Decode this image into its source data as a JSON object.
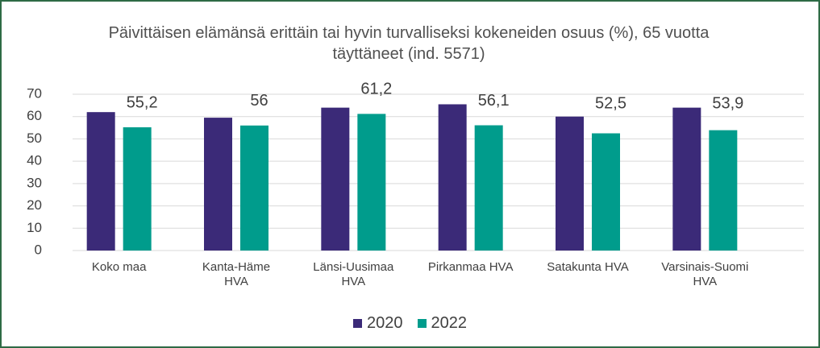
{
  "chart_data": {
    "type": "bar",
    "title": "Päivittäisen elämänsä erittäin tai hyvin turvalliseksi kokeneiden osuus (%), 65 vuotta täyttäneet (ind. 5571)",
    "categories": [
      "Koko maa",
      "Kanta-Häme HVA",
      "Länsi-Uusimaa HVA",
      "Pirkanmaa HVA",
      "Satakunta HVA",
      "Varsinais-Suomi HVA"
    ],
    "series": [
      {
        "name": "2020",
        "color": "#3b2a78",
        "values": [
          62,
          59.5,
          64,
          65.5,
          60,
          64
        ]
      },
      {
        "name": "2022",
        "color": "#009c8c",
        "values": [
          55.2,
          56,
          61.2,
          56.1,
          52.5,
          53.9
        ],
        "value_labels": [
          "55,2",
          "56",
          "61,2",
          "56,1",
          "52,5",
          "53,9"
        ]
      }
    ],
    "ylim": [
      0,
      70
    ],
    "yticks": [
      0,
      10,
      20,
      30,
      40,
      50,
      60,
      70
    ],
    "grid": true,
    "legend": "bottom"
  }
}
